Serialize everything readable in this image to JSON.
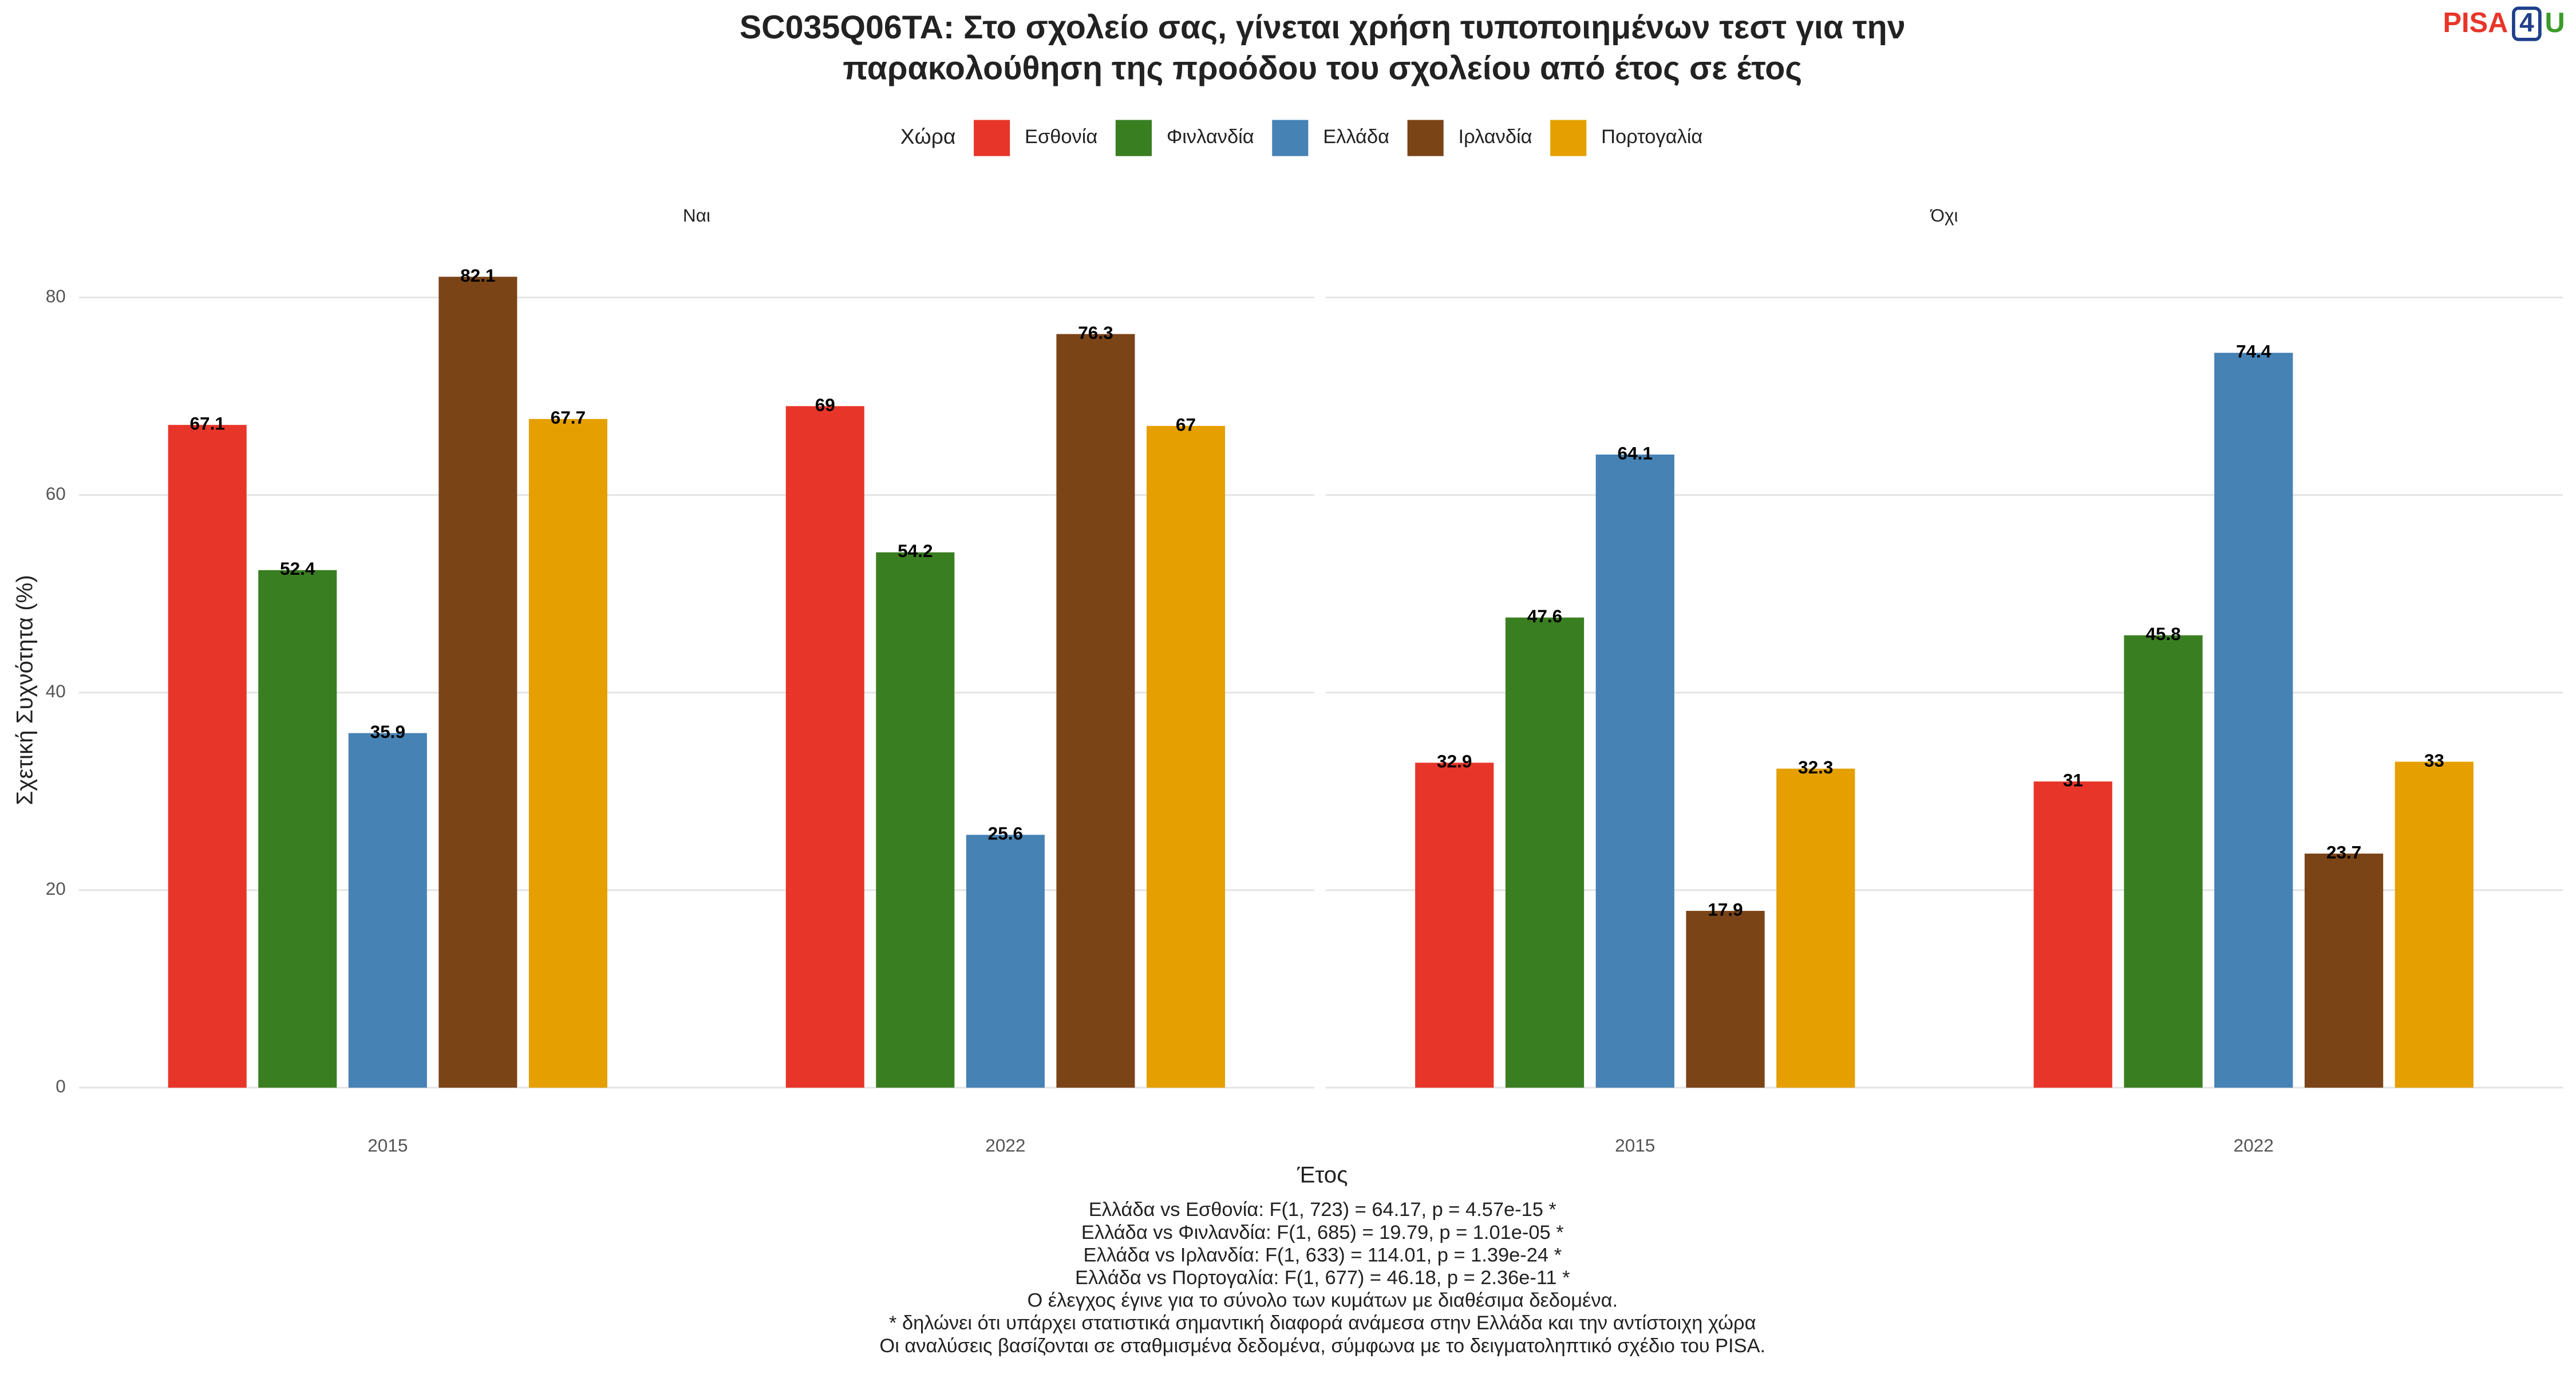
{
  "chart_data": {
    "type": "bar",
    "title": [
      "SC035Q06TA: Στο σχολείο σας, γίνεται χρήση τυποποιημένων τεστ για την",
      "παρακολούθηση της προόδου του σχολείου από έτος σε έτος"
    ],
    "logo": [
      "PISA",
      "4",
      "U"
    ],
    "legend_title": "Χώρα",
    "y_label": "Σχετική Συχνότητα (%)",
    "x_label": "Έτος",
    "facets": [
      "Ναι",
      "Όχι"
    ],
    "categories": [
      "2015",
      "2022"
    ],
    "ylim": [
      0,
      86
    ],
    "yticks": [
      0,
      20,
      40,
      60,
      80
    ],
    "grid": true,
    "series": [
      {
        "name": "Εσθονία",
        "color": "#e8352a",
        "values": [
          [
            67.1,
            69
          ],
          [
            32.9,
            31
          ]
        ]
      },
      {
        "name": "Φινλανδία",
        "color": "#3a7e22",
        "values": [
          [
            52.4,
            54.2
          ],
          [
            47.6,
            45.8
          ]
        ]
      },
      {
        "name": "Ελλάδα",
        "color": "#4682b4",
        "values": [
          [
            35.9,
            25.6
          ],
          [
            64.1,
            74.4
          ]
        ]
      },
      {
        "name": "Ιρλανδία",
        "color": "#7b4417",
        "values": [
          [
            82.1,
            76.3
          ],
          [
            17.9,
            23.7
          ]
        ]
      },
      {
        "name": "Πορτογαλία",
        "color": "#e5a000",
        "values": [
          [
            67.7,
            67
          ],
          [
            32.3,
            33
          ]
        ]
      }
    ],
    "notes": [
      "Ελλάδα vs Εσθονία: F(1, 723) = 64.17, p = 4.57e-15 *",
      "Ελλάδα vs Φινλανδία: F(1, 685) = 19.79, p = 1.01e-05 *",
      "Ελλάδα vs Ιρλανδία: F(1, 633) = 114.01, p = 1.39e-24 *",
      "Ελλάδα vs Πορτογαλία: F(1, 677) = 46.18, p = 2.36e-11 *",
      "Ο έλεγχος έγινε για το σύνολο των κυμάτων με διαθέσιμα δεδομένα.",
      "* δηλώνει ότι υπάρχει στατιστικά σημαντική διαφορά ανάμεσα στην Ελλάδα και την αντίστοιχη χώρα",
      "Οι αναλύσεις βασίζονται σε σταθμισμένα δεδομένα, σύμφωνα με το δειγματοληπτικό σχέδιο του PISA."
    ]
  }
}
